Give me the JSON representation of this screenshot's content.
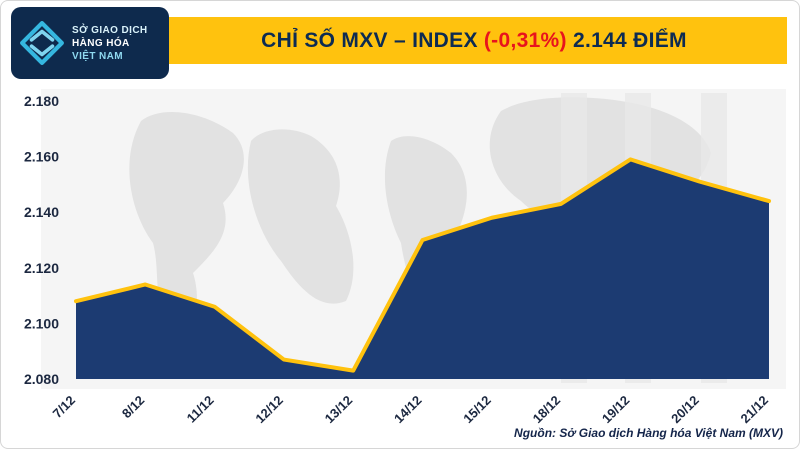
{
  "header": {
    "logo": {
      "line1": "SỞ GIAO DỊCH",
      "line2": "HÀNG HÓA",
      "line3": "VIỆT NAM"
    },
    "title_prefix": "CHỈ SỐ MXV – INDEX ",
    "title_change": "(-0,31%)",
    "title_suffix": " 2.144 ĐIỂM"
  },
  "footer": {
    "source": "Nguồn: Sở Giao dịch Hàng hóa Việt Nam (MXV)"
  },
  "colors": {
    "navy": "#0e2a4d",
    "banner_yellow": "#ffc20e",
    "change_red": "#e8131d",
    "logo_cyan": "#35b7e0"
  },
  "chart_data": {
    "type": "area",
    "title": "CHỈ SỐ MXV – INDEX (-0,31%) 2.144 ĐIỂM",
    "x": [
      "7/12",
      "8/12",
      "11/12",
      "12/12",
      "13/12",
      "14/12",
      "15/12",
      "18/12",
      "19/12",
      "20/12",
      "21/12"
    ],
    "values": [
      2108,
      2114,
      2106,
      2087,
      2083,
      2130,
      2138,
      2143,
      2159,
      2151,
      2144
    ],
    "ylim": [
      2080,
      2180
    ],
    "yticks": [
      {
        "value": 2180,
        "label": "2.180"
      },
      {
        "value": 2160,
        "label": "2.160"
      },
      {
        "value": 2140,
        "label": "2.140"
      },
      {
        "value": 2120,
        "label": "2.120"
      },
      {
        "value": 2100,
        "label": "2.100"
      },
      {
        "value": 2080,
        "label": "2.080"
      }
    ],
    "xlabel": "",
    "ylabel": "",
    "grid": false,
    "legend": false,
    "line_color": "#ffc20e",
    "fill_color": "#1c3b72"
  }
}
